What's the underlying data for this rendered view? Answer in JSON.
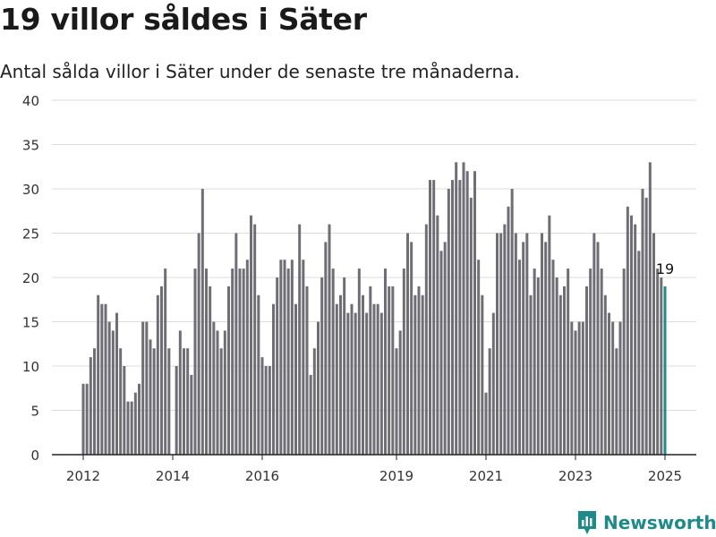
{
  "header": {
    "title": "19 villor såldes i Säter",
    "subtitle": "Antal sålda villor i Säter under de senaste tre månaderna."
  },
  "brand": {
    "name": "Newsworthy",
    "icon": "newsworthy-logo-icon"
  },
  "colors": {
    "bar": "#6f6e75",
    "highlight": "#1f8a8a",
    "grid": "#dcdcdc",
    "axis": "#222222"
  },
  "chart_data": {
    "type": "bar",
    "title": "19 villor såldes i Säter",
    "subtitle": "Antal sålda villor i Säter under de senaste tre månaderna.",
    "xlabel": "",
    "ylabel": "",
    "ylim": [
      0,
      40
    ],
    "yticks": [
      0,
      5,
      10,
      15,
      20,
      25,
      30,
      35,
      40
    ],
    "xticks": [
      "2012",
      "2014",
      "2016",
      "2019",
      "2021",
      "2023",
      "2025"
    ],
    "x_start": "2012-01",
    "x_end": "2025-01",
    "grid": true,
    "legend": "none",
    "annotation": {
      "text": "19",
      "target": "last"
    },
    "values": [
      8,
      8,
      11,
      12,
      18,
      17,
      17,
      15,
      14,
      16,
      12,
      10,
      6,
      6,
      7,
      8,
      15,
      15,
      13,
      12,
      18,
      19,
      21,
      12,
      0,
      10,
      14,
      12,
      12,
      9,
      21,
      25,
      30,
      21,
      19,
      15,
      14,
      12,
      14,
      19,
      21,
      25,
      21,
      21,
      22,
      27,
      26,
      18,
      11,
      10,
      10,
      17,
      20,
      22,
      22,
      21,
      22,
      17,
      26,
      22,
      19,
      9,
      12,
      15,
      20,
      24,
      26,
      21,
      17,
      18,
      20,
      16,
      17,
      16,
      21,
      18,
      16,
      19,
      17,
      17,
      16,
      21,
      19,
      19,
      12,
      14,
      21,
      25,
      24,
      18,
      19,
      18,
      26,
      31,
      31,
      27,
      23,
      24,
      30,
      31,
      33,
      31,
      33,
      32,
      29,
      32,
      22,
      18,
      7,
      12,
      16,
      25,
      25,
      26,
      28,
      30,
      25,
      22,
      24,
      25,
      18,
      21,
      20,
      25,
      24,
      27,
      22,
      20,
      18,
      19,
      21,
      15,
      14,
      15,
      15,
      19,
      21,
      25,
      24,
      21,
      18,
      16,
      15,
      12,
      15,
      21,
      28,
      27,
      26,
      23,
      30,
      29,
      33,
      25,
      21,
      20,
      19
    ]
  }
}
